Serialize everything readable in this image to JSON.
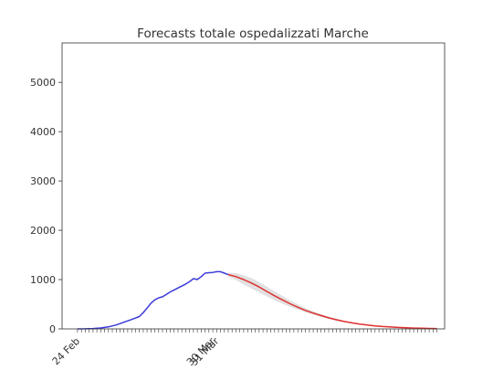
{
  "chart_data": {
    "type": "line",
    "title": "Forecasts totale ospedalizzati Marche",
    "xlabel": "",
    "ylabel": "",
    "x_axis": {
      "type": "date",
      "range": [
        "2020-02-20",
        "2020-05-29"
      ],
      "labeled_ticks": [
        {
          "date": "2020-02-24",
          "label": "24 Feb"
        },
        {
          "date": "2020-03-30",
          "label": "30 Mar"
        },
        {
          "date": "2020-03-31",
          "label": "31 Mar"
        }
      ],
      "minor_tick_step_days": 1,
      "tick_label_rotation": 45
    },
    "ylim": [
      0,
      5800
    ],
    "yticks": [
      0,
      1000,
      2000,
      3000,
      4000,
      5000
    ],
    "grid": false,
    "legend": "none",
    "series": [
      {
        "role": "observed",
        "color": "#3a3ad8",
        "points": [
          [
            "2020-02-24",
            0
          ],
          [
            "2020-02-26",
            2
          ],
          [
            "2020-02-28",
            8
          ],
          [
            "2020-03-01",
            18
          ],
          [
            "2020-03-03",
            40
          ],
          [
            "2020-03-05",
            80
          ],
          [
            "2020-03-07",
            135
          ],
          [
            "2020-03-09",
            190
          ],
          [
            "2020-03-11",
            250
          ],
          [
            "2020-03-12",
            330
          ],
          [
            "2020-03-13",
            420
          ],
          [
            "2020-03-14",
            520
          ],
          [
            "2020-03-15",
            590
          ],
          [
            "2020-03-16",
            630
          ],
          [
            "2020-03-17",
            650
          ],
          [
            "2020-03-18",
            700
          ],
          [
            "2020-03-19",
            750
          ],
          [
            "2020-03-20",
            790
          ],
          [
            "2020-03-21",
            830
          ],
          [
            "2020-03-22",
            870
          ],
          [
            "2020-03-23",
            910
          ],
          [
            "2020-03-24",
            960
          ],
          [
            "2020-03-25",
            1020
          ],
          [
            "2020-03-26",
            1000
          ],
          [
            "2020-03-27",
            1060
          ],
          [
            "2020-03-28",
            1130
          ],
          [
            "2020-03-29",
            1140
          ],
          [
            "2020-03-30",
            1145
          ],
          [
            "2020-03-31",
            1160
          ],
          [
            "2020-04-01",
            1160
          ],
          [
            "2020-04-02",
            1130
          ],
          [
            "2020-04-03",
            1100
          ]
        ]
      },
      {
        "role": "forecast",
        "color": "#e03030",
        "band_color": "#c8c8c8",
        "points": [
          [
            "2020-04-03",
            1100,
            1060,
            1140
          ],
          [
            "2020-04-05",
            1060,
            990,
            1130
          ],
          [
            "2020-04-07",
            1000,
            900,
            1090
          ],
          [
            "2020-04-09",
            930,
            820,
            1030
          ],
          [
            "2020-04-11",
            850,
            740,
            950
          ],
          [
            "2020-04-13",
            760,
            660,
            860
          ],
          [
            "2020-04-15",
            670,
            580,
            760
          ],
          [
            "2020-04-17",
            590,
            510,
            670
          ],
          [
            "2020-04-19",
            510,
            450,
            580
          ],
          [
            "2020-04-21",
            440,
            390,
            500
          ],
          [
            "2020-04-23",
            375,
            335,
            420
          ],
          [
            "2020-04-25",
            320,
            285,
            355
          ],
          [
            "2020-04-27",
            270,
            240,
            300
          ],
          [
            "2020-04-29",
            225,
            200,
            250
          ],
          [
            "2020-05-01",
            185,
            165,
            205
          ],
          [
            "2020-05-03",
            150,
            135,
            165
          ],
          [
            "2020-05-05",
            122,
            110,
            135
          ],
          [
            "2020-05-07",
            98,
            88,
            108
          ],
          [
            "2020-05-09",
            78,
            70,
            86
          ],
          [
            "2020-05-11",
            62,
            55,
            69
          ],
          [
            "2020-05-13",
            48,
            43,
            54
          ],
          [
            "2020-05-15",
            38,
            34,
            42
          ],
          [
            "2020-05-17",
            29,
            26,
            33
          ],
          [
            "2020-05-19",
            22,
            20,
            25
          ],
          [
            "2020-05-21",
            17,
            15,
            19
          ],
          [
            "2020-05-23",
            13,
            11,
            15
          ],
          [
            "2020-05-25",
            10,
            9,
            11
          ],
          [
            "2020-05-27",
            7,
            6,
            8
          ]
        ]
      }
    ]
  }
}
